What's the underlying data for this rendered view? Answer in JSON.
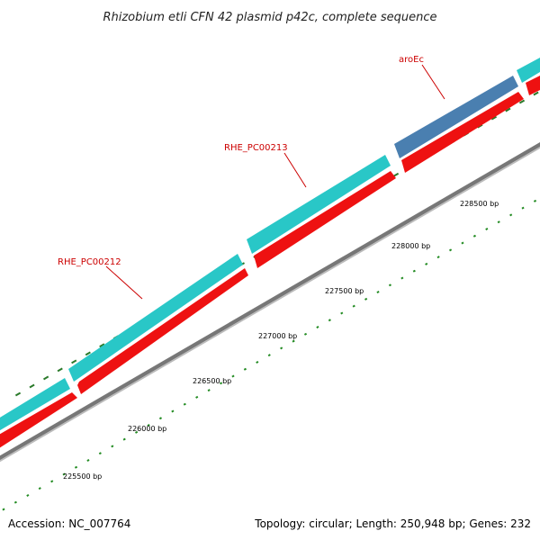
{
  "title": "Rhizobium etli CFN 42 plasmid p42c, complete sequence",
  "accession_text": "Accession: NC_007764",
  "summary_text": "Topology: circular; Length: 250,948 bp; Genes: 232",
  "colors": {
    "forward_gene": "#29c7c7",
    "highlight_gene": "#4a7fb0",
    "cds": "#ee1111",
    "backbone": "#888888",
    "tick_major": "#2a7a2a",
    "tick_minor": "#228b22",
    "gene_label": "#cc0000"
  },
  "gene_labels": [
    {
      "text": "RHE_PC00212"
    },
    {
      "text": "RHE_PC00213"
    },
    {
      "text": "aroEc"
    }
  ],
  "bp_labels": [
    {
      "text": "225500 bp"
    },
    {
      "text": "226000 bp"
    },
    {
      "text": "226500 bp"
    },
    {
      "text": "227000 bp"
    },
    {
      "text": "227500 bp"
    },
    {
      "text": "228000 bp"
    },
    {
      "text": "228500 bp"
    }
  ]
}
